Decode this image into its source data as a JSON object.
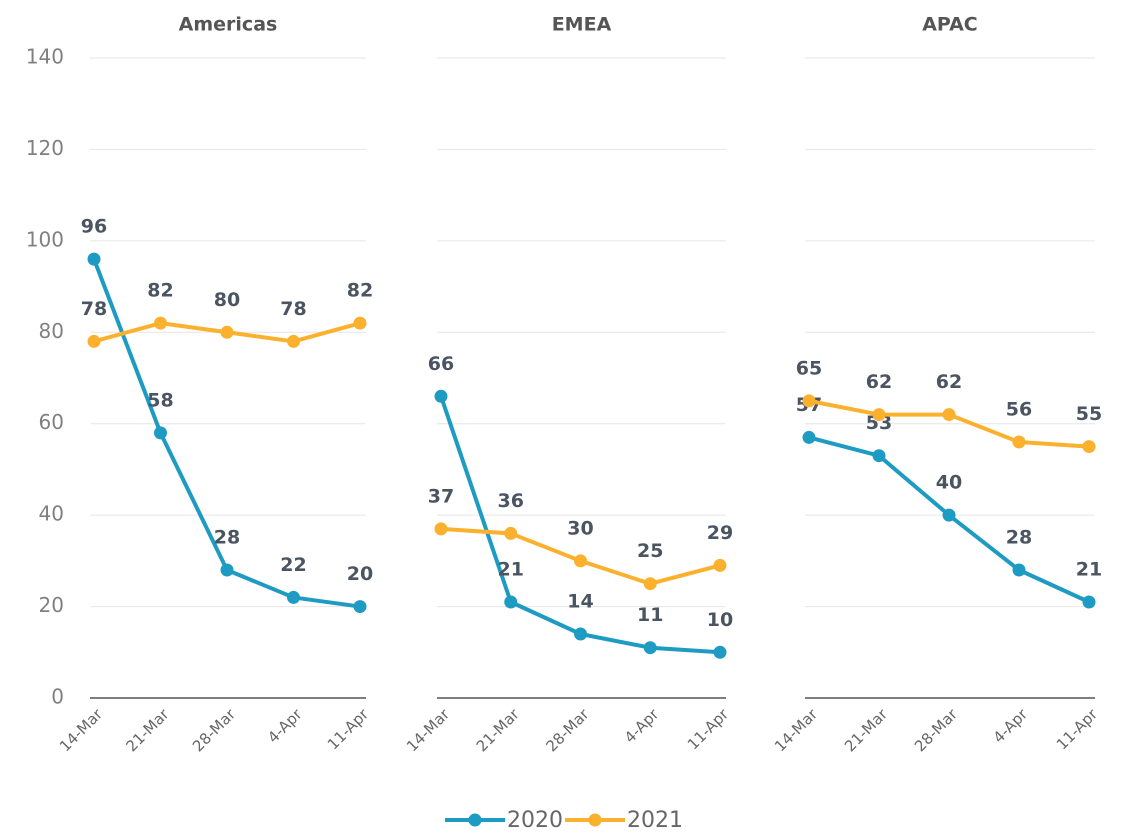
{
  "chart_data": [
    {
      "type": "line",
      "title": "Americas",
      "categories": [
        "14-Mar",
        "21-Mar",
        "28-Mar",
        "4-Apr",
        "11-Apr"
      ],
      "series": [
        {
          "name": "2020",
          "color": "#1e9bc2",
          "values": [
            96,
            58,
            28,
            22,
            20
          ]
        },
        {
          "name": "2021",
          "color": "#fbb12e",
          "values": [
            78,
            82,
            80,
            78,
            82
          ]
        }
      ],
      "ylim": [
        0,
        140
      ],
      "yticks": [
        0,
        20,
        40,
        60,
        80,
        100,
        120,
        140
      ],
      "grid": true
    },
    {
      "type": "line",
      "title": "EMEA",
      "categories": [
        "14-Mar",
        "21-Mar",
        "28-Mar",
        "4-Apr",
        "11-Apr"
      ],
      "series": [
        {
          "name": "2020",
          "color": "#1e9bc2",
          "values": [
            66,
            21,
            14,
            11,
            10
          ]
        },
        {
          "name": "2021",
          "color": "#fbb12e",
          "values": [
            37,
            36,
            30,
            25,
            29
          ]
        }
      ],
      "ylim": [
        0,
        140
      ],
      "yticks": [
        0,
        20,
        40,
        60,
        80,
        100,
        120,
        140
      ],
      "grid": true
    },
    {
      "type": "line",
      "title": "APAC",
      "categories": [
        "14-Mar",
        "21-Mar",
        "28-Mar",
        "4-Apr",
        "11-Apr"
      ],
      "series": [
        {
          "name": "2020",
          "color": "#1e9bc2",
          "values": [
            57,
            53,
            40,
            28,
            21
          ]
        },
        {
          "name": "2021",
          "color": "#fbb12e",
          "values": [
            65,
            62,
            62,
            56,
            55
          ]
        }
      ],
      "ylim": [
        0,
        140
      ],
      "yticks": [
        0,
        20,
        40,
        60,
        80,
        100,
        120,
        140
      ],
      "grid": true
    }
  ]
}
